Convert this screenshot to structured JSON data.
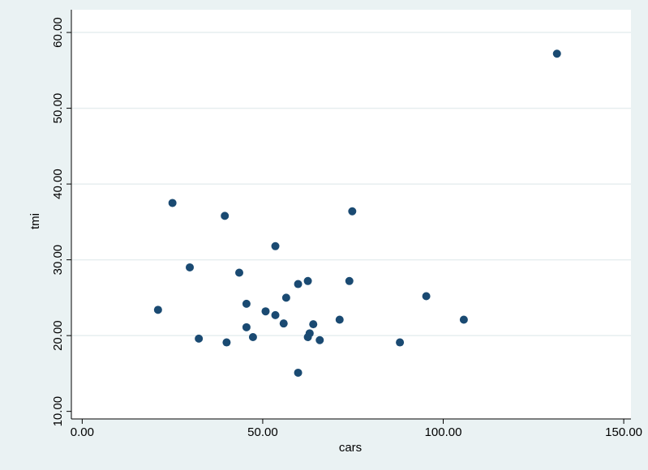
{
  "chart_data": {
    "type": "scatter",
    "title": "",
    "xlabel": "cars",
    "ylabel": "tmi",
    "xlim": [
      -3,
      152
    ],
    "ylim": [
      9,
      63
    ],
    "x_ticks": [
      0,
      50,
      100,
      150
    ],
    "x_tick_labels": [
      "0.00",
      "50.00",
      "100.00",
      "150.00"
    ],
    "y_ticks": [
      10,
      20,
      30,
      40,
      50,
      60
    ],
    "y_tick_labels": [
      "10.00",
      "20.00",
      "30.00",
      "40.00",
      "50.00",
      "60.00"
    ],
    "grid": "horizontal",
    "colors": {
      "background": "#eaf2f3",
      "plot_area": "#ffffff",
      "grid": "#e6eeef",
      "marker": "#1a4a72"
    },
    "points": [
      {
        "x": 131.5,
        "y": 57.2
      },
      {
        "x": 25.0,
        "y": 37.5
      },
      {
        "x": 39.5,
        "y": 35.8
      },
      {
        "x": 74.8,
        "y": 36.4
      },
      {
        "x": 53.5,
        "y": 31.8
      },
      {
        "x": 29.8,
        "y": 29.0
      },
      {
        "x": 43.5,
        "y": 28.3
      },
      {
        "x": 62.5,
        "y": 27.2
      },
      {
        "x": 74.0,
        "y": 27.2
      },
      {
        "x": 59.8,
        "y": 26.8
      },
      {
        "x": 95.3,
        "y": 25.2
      },
      {
        "x": 56.5,
        "y": 25.0
      },
      {
        "x": 45.5,
        "y": 24.2
      },
      {
        "x": 21.0,
        "y": 23.4
      },
      {
        "x": 50.8,
        "y": 23.2
      },
      {
        "x": 53.5,
        "y": 22.7
      },
      {
        "x": 71.3,
        "y": 22.1
      },
      {
        "x": 105.7,
        "y": 22.1
      },
      {
        "x": 55.8,
        "y": 21.6
      },
      {
        "x": 64.0,
        "y": 21.5
      },
      {
        "x": 45.5,
        "y": 21.1
      },
      {
        "x": 63.0,
        "y": 20.3
      },
      {
        "x": 62.5,
        "y": 19.8
      },
      {
        "x": 47.3,
        "y": 19.8
      },
      {
        "x": 32.3,
        "y": 19.6
      },
      {
        "x": 65.8,
        "y": 19.4
      },
      {
        "x": 40.0,
        "y": 19.1
      },
      {
        "x": 88.0,
        "y": 19.1
      },
      {
        "x": 59.8,
        "y": 15.1
      }
    ]
  }
}
